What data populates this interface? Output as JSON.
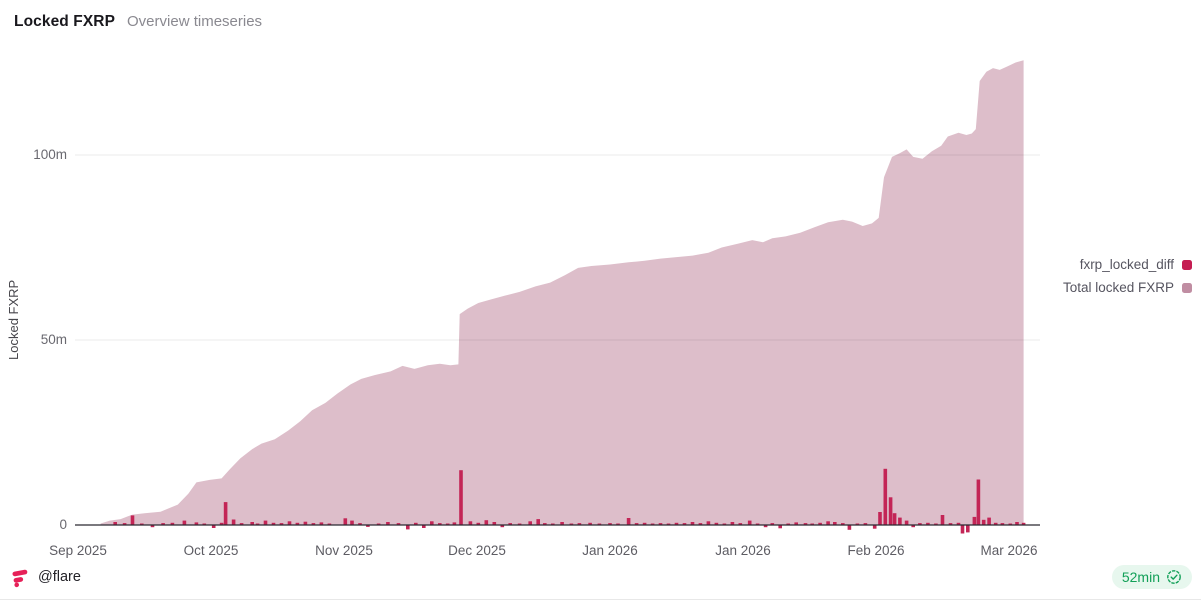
{
  "header": {
    "title": "Locked FXRP",
    "subtitle": "Overview timeseries"
  },
  "legend": [
    {
      "label": "fxrp_locked_diff",
      "color": "#c51d52"
    },
    {
      "label": "Total locked FXRP",
      "color": "#c08da2"
    }
  ],
  "footer": {
    "author": "@flare",
    "freshness": "52min"
  },
  "colors": {
    "area_fill": "#ddbeca",
    "bar_fill": "#c32556",
    "flare_pink": "#e62058",
    "badge_green": "#12a058",
    "badge_bg": "#e7f7ee",
    "axis_line": "#2a2930",
    "gridline": "rgba(0,0,0,0.08)"
  },
  "chart_data": {
    "type": "area",
    "title": "Locked FXRP — Overview timeseries",
    "xlabel": "",
    "ylabel": "Locked FXRP",
    "y_unit": "FXRP (m = millions)",
    "ylim": [
      0,
      127
    ],
    "grid": "horizontal",
    "legend_position": "right",
    "x_unit": "months from Sep 2025 tick (1 unit = 1 x-axis tick)",
    "x_ticks": [
      "Sep 2025",
      "Oct 2025",
      "Nov 2025",
      "Dec 2025",
      "Jan 2026",
      "Jan 2026",
      "Feb 2026",
      "Mar 2026"
    ],
    "y_ticks": [
      {
        "value": 0,
        "label": "0"
      },
      {
        "value": 50,
        "label": "50m"
      },
      {
        "value": 100,
        "label": "100m"
      }
    ],
    "series": [
      {
        "name": "Total locked FXRP",
        "type": "area",
        "color": "#ddbeca",
        "points": [
          [
            0.17,
            0.4
          ],
          [
            0.24,
            1.2
          ],
          [
            0.32,
            1.6
          ],
          [
            0.41,
            2.8
          ],
          [
            0.5,
            3.2
          ],
          [
            0.62,
            3.6
          ],
          [
            0.75,
            5.5
          ],
          [
            0.83,
            8.5
          ],
          [
            0.89,
            11.5
          ],
          [
            0.99,
            12.2
          ],
          [
            1.08,
            12.6
          ],
          [
            1.14,
            15
          ],
          [
            1.22,
            18
          ],
          [
            1.31,
            20.5
          ],
          [
            1.38,
            22
          ],
          [
            1.48,
            23.2
          ],
          [
            1.58,
            25.5
          ],
          [
            1.67,
            28
          ],
          [
            1.76,
            31
          ],
          [
            1.86,
            33
          ],
          [
            1.95,
            35.5
          ],
          [
            2.05,
            38
          ],
          [
            2.13,
            39.5
          ],
          [
            2.23,
            40.5
          ],
          [
            2.35,
            41.5
          ],
          [
            2.44,
            43
          ],
          [
            2.53,
            42.2
          ],
          [
            2.63,
            43.2
          ],
          [
            2.72,
            43.6
          ],
          [
            2.8,
            43.2
          ],
          [
            2.86,
            43.4
          ],
          [
            2.87,
            57
          ],
          [
            2.93,
            58.5
          ],
          [
            3.01,
            60
          ],
          [
            3.11,
            61
          ],
          [
            3.21,
            62
          ],
          [
            3.32,
            63
          ],
          [
            3.44,
            64.5
          ],
          [
            3.55,
            65.5
          ],
          [
            3.66,
            67.5
          ],
          [
            3.76,
            69.5
          ],
          [
            3.86,
            70
          ],
          [
            4.0,
            70.4
          ],
          [
            4.14,
            71
          ],
          [
            4.26,
            71.4
          ],
          [
            4.38,
            72
          ],
          [
            4.5,
            72.4
          ],
          [
            4.62,
            72.8
          ],
          [
            4.74,
            73.6
          ],
          [
            4.84,
            75
          ],
          [
            4.96,
            76
          ],
          [
            5.07,
            77
          ],
          [
            5.15,
            76.4
          ],
          [
            5.22,
            77.5
          ],
          [
            5.32,
            78
          ],
          [
            5.43,
            79
          ],
          [
            5.54,
            80.5
          ],
          [
            5.64,
            81.8
          ],
          [
            5.75,
            82.5
          ],
          [
            5.82,
            82
          ],
          [
            5.9,
            80.8
          ],
          [
            5.97,
            81.5
          ],
          [
            6.02,
            83
          ],
          [
            6.06,
            94
          ],
          [
            6.12,
            99.5
          ],
          [
            6.18,
            100.5
          ],
          [
            6.23,
            101.5
          ],
          [
            6.28,
            99.5
          ],
          [
            6.35,
            99
          ],
          [
            6.42,
            101
          ],
          [
            6.49,
            102.5
          ],
          [
            6.54,
            105
          ],
          [
            6.62,
            106
          ],
          [
            6.68,
            105.4
          ],
          [
            6.72,
            105.8
          ],
          [
            6.75,
            107
          ],
          [
            6.78,
            120
          ],
          [
            6.83,
            122.5
          ],
          [
            6.88,
            123.5
          ],
          [
            6.93,
            123
          ],
          [
            6.99,
            124
          ],
          [
            7.05,
            125
          ],
          [
            7.11,
            125.6
          ]
        ]
      },
      {
        "name": "fxrp_locked_diff",
        "type": "bar",
        "color": "#c32556",
        "points": [
          [
            0.28,
            0.8
          ],
          [
            0.35,
            0.5
          ],
          [
            0.41,
            2.6
          ],
          [
            0.48,
            0.4
          ],
          [
            0.56,
            -0.6
          ],
          [
            0.64,
            0.5
          ],
          [
            0.71,
            0.6
          ],
          [
            0.8,
            1.2
          ],
          [
            0.89,
            0.7
          ],
          [
            0.95,
            0.4
          ],
          [
            1.02,
            -0.8
          ],
          [
            1.08,
            0.6
          ],
          [
            1.11,
            6.2
          ],
          [
            1.17,
            1.5
          ],
          [
            1.23,
            0.5
          ],
          [
            1.31,
            0.8
          ],
          [
            1.35,
            0.4
          ],
          [
            1.41,
            1.2
          ],
          [
            1.47,
            0.6
          ],
          [
            1.53,
            0.5
          ],
          [
            1.59,
            1.0
          ],
          [
            1.65,
            0.6
          ],
          [
            1.71,
            0.9
          ],
          [
            1.77,
            0.5
          ],
          [
            1.83,
            0.7
          ],
          [
            1.89,
            0.4
          ],
          [
            2.01,
            1.8
          ],
          [
            2.06,
            1.2
          ],
          [
            2.12,
            0.5
          ],
          [
            2.18,
            -0.5
          ],
          [
            2.26,
            0.4
          ],
          [
            2.33,
            0.8
          ],
          [
            2.41,
            0.5
          ],
          [
            2.48,
            -1.2
          ],
          [
            2.54,
            0.6
          ],
          [
            2.6,
            -0.8
          ],
          [
            2.66,
            1.0
          ],
          [
            2.72,
            0.5
          ],
          [
            2.78,
            0.4
          ],
          [
            2.83,
            0.7
          ],
          [
            2.88,
            14.8
          ],
          [
            2.95,
            1.0
          ],
          [
            3.01,
            0.6
          ],
          [
            3.07,
            1.3
          ],
          [
            3.13,
            0.8
          ],
          [
            3.19,
            -0.6
          ],
          [
            3.25,
            0.5
          ],
          [
            3.32,
            0.4
          ],
          [
            3.4,
            1.0
          ],
          [
            3.46,
            1.6
          ],
          [
            3.51,
            0.5
          ],
          [
            3.57,
            0.4
          ],
          [
            3.64,
            0.8
          ],
          [
            3.71,
            0.4
          ],
          [
            3.77,
            0.5
          ],
          [
            3.85,
            0.6
          ],
          [
            3.92,
            0.4
          ],
          [
            4.0,
            0.5
          ],
          [
            4.06,
            0.4
          ],
          [
            4.14,
            1.9
          ],
          [
            4.2,
            0.5
          ],
          [
            4.26,
            0.6
          ],
          [
            4.32,
            0.4
          ],
          [
            4.38,
            0.5
          ],
          [
            4.44,
            0.4
          ],
          [
            4.5,
            0.6
          ],
          [
            4.56,
            0.5
          ],
          [
            4.62,
            0.8
          ],
          [
            4.68,
            0.5
          ],
          [
            4.74,
            1.0
          ],
          [
            4.8,
            0.6
          ],
          [
            4.86,
            0.4
          ],
          [
            4.92,
            0.8
          ],
          [
            4.98,
            0.5
          ],
          [
            5.05,
            1.2
          ],
          [
            5.11,
            0.4
          ],
          [
            5.17,
            -0.6
          ],
          [
            5.22,
            0.5
          ],
          [
            5.28,
            -0.9
          ],
          [
            5.34,
            0.4
          ],
          [
            5.4,
            0.7
          ],
          [
            5.47,
            0.5
          ],
          [
            5.52,
            0.4
          ],
          [
            5.58,
            0.6
          ],
          [
            5.64,
            1.0
          ],
          [
            5.69,
            0.8
          ],
          [
            5.75,
            0.5
          ],
          [
            5.8,
            -1.3
          ],
          [
            5.86,
            0.4
          ],
          [
            5.92,
            0.5
          ],
          [
            5.99,
            -1.0
          ],
          [
            6.03,
            3.5
          ],
          [
            6.07,
            15.2
          ],
          [
            6.11,
            7.5
          ],
          [
            6.14,
            3.2
          ],
          [
            6.18,
            2.0
          ],
          [
            6.23,
            1.2
          ],
          [
            6.28,
            -0.6
          ],
          [
            6.33,
            0.5
          ],
          [
            6.39,
            0.6
          ],
          [
            6.45,
            0.4
          ],
          [
            6.5,
            2.7
          ],
          [
            6.56,
            0.5
          ],
          [
            6.62,
            0.6
          ],
          [
            6.65,
            -2.3
          ],
          [
            6.69,
            -2.0
          ],
          [
            6.74,
            2.2
          ],
          [
            6.77,
            12.3
          ],
          [
            6.81,
            1.4
          ],
          [
            6.85,
            2.0
          ],
          [
            6.9,
            0.6
          ],
          [
            6.95,
            0.5
          ],
          [
            7.01,
            0.4
          ],
          [
            7.06,
            0.8
          ],
          [
            7.11,
            0.6
          ]
        ]
      }
    ]
  }
}
